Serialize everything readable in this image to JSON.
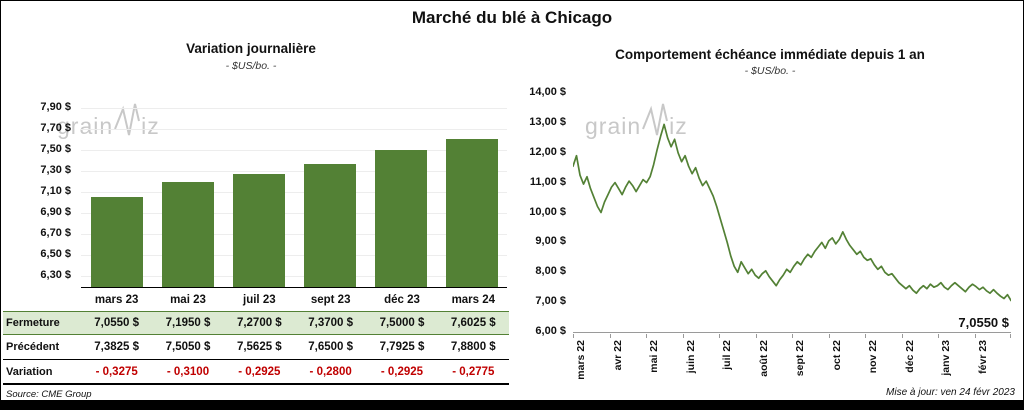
{
  "page": {
    "title": "Marché du blé à Chicago",
    "source": "Source: CME Group",
    "updated": "Mise à jour: ven 24 févr 2023",
    "watermark_prefix": "grain",
    "watermark_suffix": "iz"
  },
  "colors": {
    "green": "#538135",
    "closing_row_bg": "#dcead2",
    "closing_row_border": "#538135",
    "variation_red": "#c00000",
    "watermark_gray": "#c8c8c8"
  },
  "chart_data": [
    {
      "type": "bar",
      "title": "Variation journalière",
      "subtitle": "- $US/bo. -",
      "categories": [
        "mars 23",
        "mai 23",
        "juil 23",
        "sept 23",
        "déc 23",
        "mars 24"
      ],
      "values": [
        7.055,
        7.195,
        7.27,
        7.37,
        7.5,
        7.6025
      ],
      "ylim": [
        6.3,
        7.9
      ],
      "ytick_step": 0.2,
      "y_tick_labels": [
        "7,90 $",
        "7,70 $",
        "7,50 $",
        "7,30 $",
        "7,10 $",
        "6,90 $",
        "6,70 $",
        "6,50 $",
        "6,30 $"
      ],
      "bar_color": "#538135",
      "grid": true,
      "table": {
        "rows": [
          {
            "label": "Fermeture",
            "style": "closing",
            "values": [
              "7,0550 $",
              "7,1950 $",
              "7,2700 $",
              "7,3700 $",
              "7,5000 $",
              "7,6025 $"
            ]
          },
          {
            "label": "Précédent",
            "style": "previous",
            "values": [
              "7,3825 $",
              "7,5050 $",
              "7,5625 $",
              "7,6500 $",
              "7,7925 $",
              "7,8800 $"
            ]
          },
          {
            "label": "Variation",
            "style": "variation",
            "values": [
              "- 0,3275",
              "- 0,3100",
              "- 0,2925",
              "- 0,2800",
              "- 0,2925",
              "- 0,2775"
            ]
          }
        ]
      }
    },
    {
      "type": "line",
      "title": "Comportement échéance immédiate depuis 1 an",
      "subtitle": "- $US/bo. -",
      "x_labels": [
        "mars 22",
        "avr 22",
        "mai 22",
        "juin 22",
        "juil 22",
        "août 22",
        "sept 22",
        "oct 22",
        "nov 22",
        "déc 22",
        "janv 23",
        "févr 23"
      ],
      "values": [
        11.55,
        11.9,
        11.25,
        10.95,
        11.2,
        10.8,
        10.5,
        10.2,
        10.0,
        10.35,
        10.6,
        10.85,
        11.0,
        10.8,
        10.6,
        10.85,
        11.05,
        10.9,
        10.7,
        10.9,
        11.1,
        11.0,
        11.2,
        11.6,
        12.1,
        12.55,
        12.95,
        12.5,
        12.2,
        12.45,
        12.0,
        11.7,
        11.9,
        11.55,
        11.3,
        11.5,
        11.15,
        10.9,
        11.05,
        10.8,
        10.55,
        10.2,
        9.8,
        9.4,
        9.0,
        8.55,
        8.2,
        8.0,
        8.35,
        8.15,
        7.95,
        8.1,
        7.9,
        7.8,
        7.95,
        8.05,
        7.85,
        7.7,
        7.55,
        7.75,
        7.9,
        8.1,
        8.0,
        8.2,
        8.35,
        8.25,
        8.45,
        8.6,
        8.5,
        8.7,
        8.85,
        9.0,
        8.8,
        9.05,
        9.15,
        8.95,
        9.1,
        9.35,
        9.1,
        8.9,
        8.75,
        8.6,
        8.7,
        8.5,
        8.4,
        8.45,
        8.25,
        8.1,
        8.2,
        8.0,
        7.9,
        7.95,
        7.8,
        7.65,
        7.55,
        7.45,
        7.55,
        7.4,
        7.3,
        7.45,
        7.55,
        7.45,
        7.6,
        7.5,
        7.55,
        7.65,
        7.5,
        7.42,
        7.55,
        7.65,
        7.55,
        7.45,
        7.35,
        7.5,
        7.6,
        7.52,
        7.42,
        7.5,
        7.38,
        7.3,
        7.42,
        7.3,
        7.2,
        7.12,
        7.25,
        7.055
      ],
      "ylim": [
        6.0,
        14.0
      ],
      "ytick_step": 1.0,
      "y_tick_labels": [
        "14,00 $",
        "13,00 $",
        "12,00 $",
        "11,00 $",
        "10,00 $",
        "9,00 $",
        "8,00 $",
        "7,00 $",
        "6,00 $"
      ],
      "line_color": "#538135",
      "end_label": "7,0550 $",
      "legend": "none"
    }
  ]
}
